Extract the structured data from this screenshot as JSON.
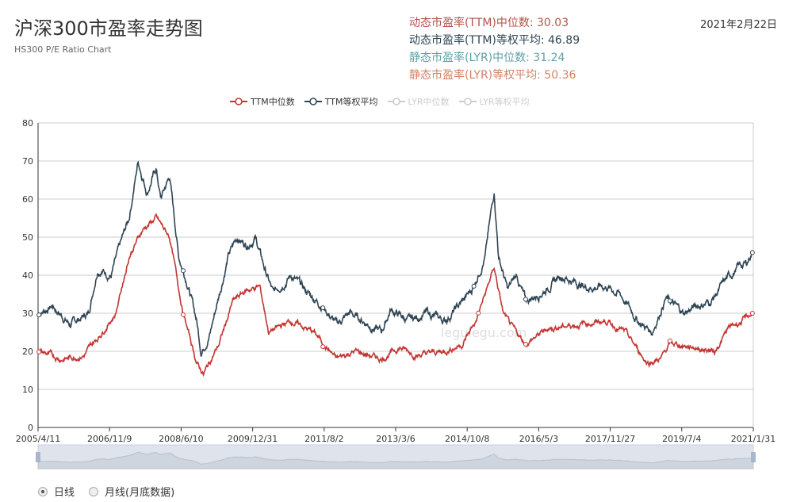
{
  "header": {
    "title": "沪深300市盈率走势图",
    "subtitle": "HS300 P/E Ratio Chart",
    "date": "2021年2月22日"
  },
  "stats": [
    {
      "label": "动态市盈率(TTM)中位数: 30.03",
      "color": "#b5524a"
    },
    {
      "label": "动态市盈率(TTM)等权平均: 46.89",
      "color": "#2f4554"
    },
    {
      "label": "静态市盈率(LYR)中位数: 31.24",
      "color": "#61a0a8"
    },
    {
      "label": "静态市盈率(LYR)等权平均: 50.36",
      "color": "#d48265"
    }
  ],
  "legend": [
    {
      "label": "TTM中位数",
      "color": "#c23531",
      "active": true
    },
    {
      "label": "TTM等权平均",
      "color": "#2f4554",
      "active": true
    },
    {
      "label": "LYR中位数",
      "color": "#ccc",
      "active": false
    },
    {
      "label": "LYR等权平均",
      "color": "#ccc",
      "active": false
    }
  ],
  "radios": [
    {
      "label": "日线",
      "checked": true
    },
    {
      "label": "月线(月底数据)",
      "checked": false
    }
  ],
  "watermark": "legulegu.com",
  "chart_data": {
    "type": "line",
    "xrange": [
      2005.28,
      2021.15
    ],
    "ylim": [
      0,
      80
    ],
    "yticks": [
      0,
      10,
      20,
      30,
      40,
      50,
      60,
      70,
      80
    ],
    "xticks": [
      "2005/4/11",
      "2006/11/9",
      "2008/6/10",
      "2009/12/31",
      "2011/8/2",
      "2013/3/6",
      "2014/10/8",
      "2016/5/3",
      "2017/11/27",
      "2019/7/4",
      "2021/1/31"
    ],
    "series": [
      {
        "name": "TTM等权平均",
        "color": "#2f4554",
        "points": [
          [
            2005.3,
            30
          ],
          [
            2005.6,
            32
          ],
          [
            2006.0,
            27
          ],
          [
            2006.4,
            30
          ],
          [
            2006.6,
            42
          ],
          [
            2006.9,
            40
          ],
          [
            2007.3,
            55
          ],
          [
            2007.5,
            70
          ],
          [
            2007.7,
            62
          ],
          [
            2007.9,
            68
          ],
          [
            2008.0,
            60
          ],
          [
            2008.2,
            66
          ],
          [
            2008.4,
            45
          ],
          [
            2008.6,
            38
          ],
          [
            2008.8,
            28
          ],
          [
            2008.9,
            20
          ],
          [
            2009.1,
            25
          ],
          [
            2009.3,
            35
          ],
          [
            2009.5,
            45
          ],
          [
            2009.7,
            50
          ],
          [
            2009.9,
            48
          ],
          [
            2010.1,
            50
          ],
          [
            2010.3,
            42
          ],
          [
            2010.5,
            35
          ],
          [
            2010.7,
            38
          ],
          [
            2010.9,
            40
          ],
          [
            2011.2,
            36
          ],
          [
            2011.6,
            32
          ],
          [
            2011.9,
            27
          ],
          [
            2012.2,
            30
          ],
          [
            2012.5,
            28
          ],
          [
            2012.9,
            25
          ],
          [
            2013.1,
            31
          ],
          [
            2013.5,
            28
          ],
          [
            2013.9,
            30
          ],
          [
            2014.3,
            28
          ],
          [
            2014.7,
            33
          ],
          [
            2014.9,
            36
          ],
          [
            2015.2,
            45
          ],
          [
            2015.4,
            62
          ],
          [
            2015.5,
            45
          ],
          [
            2015.7,
            36
          ],
          [
            2015.9,
            40
          ],
          [
            2016.1,
            33
          ],
          [
            2016.5,
            36
          ],
          [
            2016.9,
            40
          ],
          [
            2017.4,
            37
          ],
          [
            2017.9,
            37
          ],
          [
            2018.2,
            35
          ],
          [
            2018.6,
            28
          ],
          [
            2018.9,
            25
          ],
          [
            2019.2,
            34
          ],
          [
            2019.6,
            30
          ],
          [
            2019.9,
            32
          ],
          [
            2020.2,
            33
          ],
          [
            2020.5,
            38
          ],
          [
            2020.8,
            42
          ],
          [
            2021.0,
            43
          ],
          [
            2021.15,
            47
          ]
        ]
      },
      {
        "name": "TTM中位数",
        "color": "#c23531",
        "points": [
          [
            2005.3,
            20
          ],
          [
            2005.8,
            18
          ],
          [
            2006.3,
            19
          ],
          [
            2006.7,
            25
          ],
          [
            2007.0,
            30
          ],
          [
            2007.3,
            45
          ],
          [
            2007.6,
            52
          ],
          [
            2007.9,
            55
          ],
          [
            2008.2,
            50
          ],
          [
            2008.5,
            30
          ],
          [
            2008.8,
            17
          ],
          [
            2008.95,
            14
          ],
          [
            2009.3,
            22
          ],
          [
            2009.6,
            33
          ],
          [
            2009.9,
            36
          ],
          [
            2010.2,
            37
          ],
          [
            2010.4,
            25
          ],
          [
            2010.9,
            28
          ],
          [
            2011.4,
            25
          ],
          [
            2011.9,
            18
          ],
          [
            2012.3,
            20
          ],
          [
            2012.9,
            18
          ],
          [
            2013.3,
            21
          ],
          [
            2013.7,
            19
          ],
          [
            2014.3,
            20
          ],
          [
            2014.7,
            22
          ],
          [
            2015.0,
            28
          ],
          [
            2015.4,
            42
          ],
          [
            2015.6,
            30
          ],
          [
            2015.8,
            26
          ],
          [
            2016.1,
            22
          ],
          [
            2016.6,
            26
          ],
          [
            2017.2,
            27
          ],
          [
            2017.9,
            28
          ],
          [
            2018.3,
            25
          ],
          [
            2018.8,
            17
          ],
          [
            2019.1,
            18
          ],
          [
            2019.3,
            22
          ],
          [
            2019.9,
            21
          ],
          [
            2020.3,
            20
          ],
          [
            2020.6,
            26
          ],
          [
            2020.9,
            28
          ],
          [
            2021.15,
            30
          ]
        ]
      }
    ]
  }
}
